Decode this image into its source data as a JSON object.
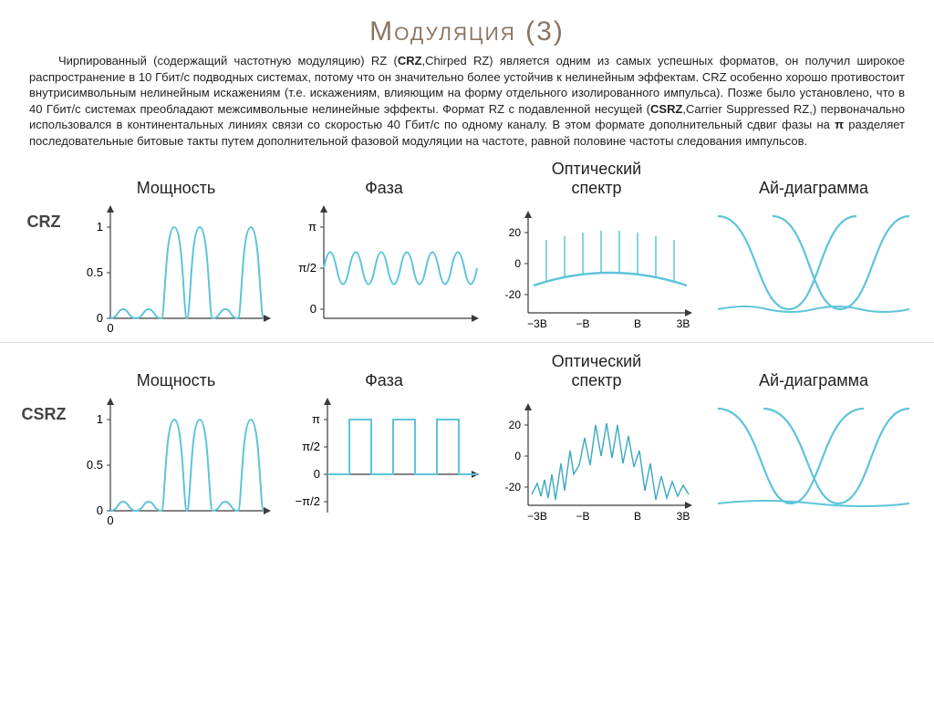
{
  "title": "Модуляция (3)",
  "paragraph_html": "Чирпированный (содержащий частотную модуляцию) RZ (<b>CRZ</b>,Chirped RZ) является одним из самых успешных форматов, он получил широкое распространение в 10 Гбит/с подводных системах, потому что он значительно более устойчив к нелинейным эффектам. CRZ особенно хорошо противостоит внутрисимвольным нелинейным искажениям (т.е. искажениям, влияющим на форму отдельного изолированного импульса). Позже было установлено, что в 40 Гбит/с системах преобладают межсимвольные нелинейные эффекты. Формат RZ с подавленной несущей (<b>CSRZ</b>,Carrier Suppressed RZ,) первоначально использовался в континентальных линиях связи со скоростью 40 Гбит/с по одному каналу. В этом формате дополнительный сдвиг фазы на <b>π</b> разделяет последовательные битовые такты путем дополнительной фазовой модуляции на частоте, равной половине частоты следования импульсов.",
  "columns": {
    "power": "Мощность",
    "phase": "Фаза",
    "spectrum_line1": "Оптический",
    "spectrum_line2": "спектр",
    "eye": "Ай-диаграмма"
  },
  "row_labels": {
    "crz": "CRZ",
    "csrz": "CSRZ"
  },
  "colors": {
    "line": "#5ec4d9",
    "line_dark": "#3aa8c0",
    "axis": "#3a3a3a",
    "tick": "#3a3a3a",
    "title": "#8a7561"
  },
  "power_chart": {
    "yticks": [
      0,
      0.5,
      1
    ],
    "xtick_zero": "0",
    "line_width": 2
  },
  "phase_crz": {
    "yticks": [
      "π",
      "π/2",
      "0"
    ],
    "line_width": 2
  },
  "phase_csrz": {
    "yticks": [
      "π",
      "π/2",
      "0",
      "−π/2"
    ],
    "line_width": 2
  },
  "spectrum": {
    "yticks": [
      20,
      0,
      -20
    ],
    "xticks": [
      "−3B",
      "−B",
      "B",
      "3B"
    ],
    "line_width": 1.5
  },
  "eye": {
    "line_width": 2
  }
}
